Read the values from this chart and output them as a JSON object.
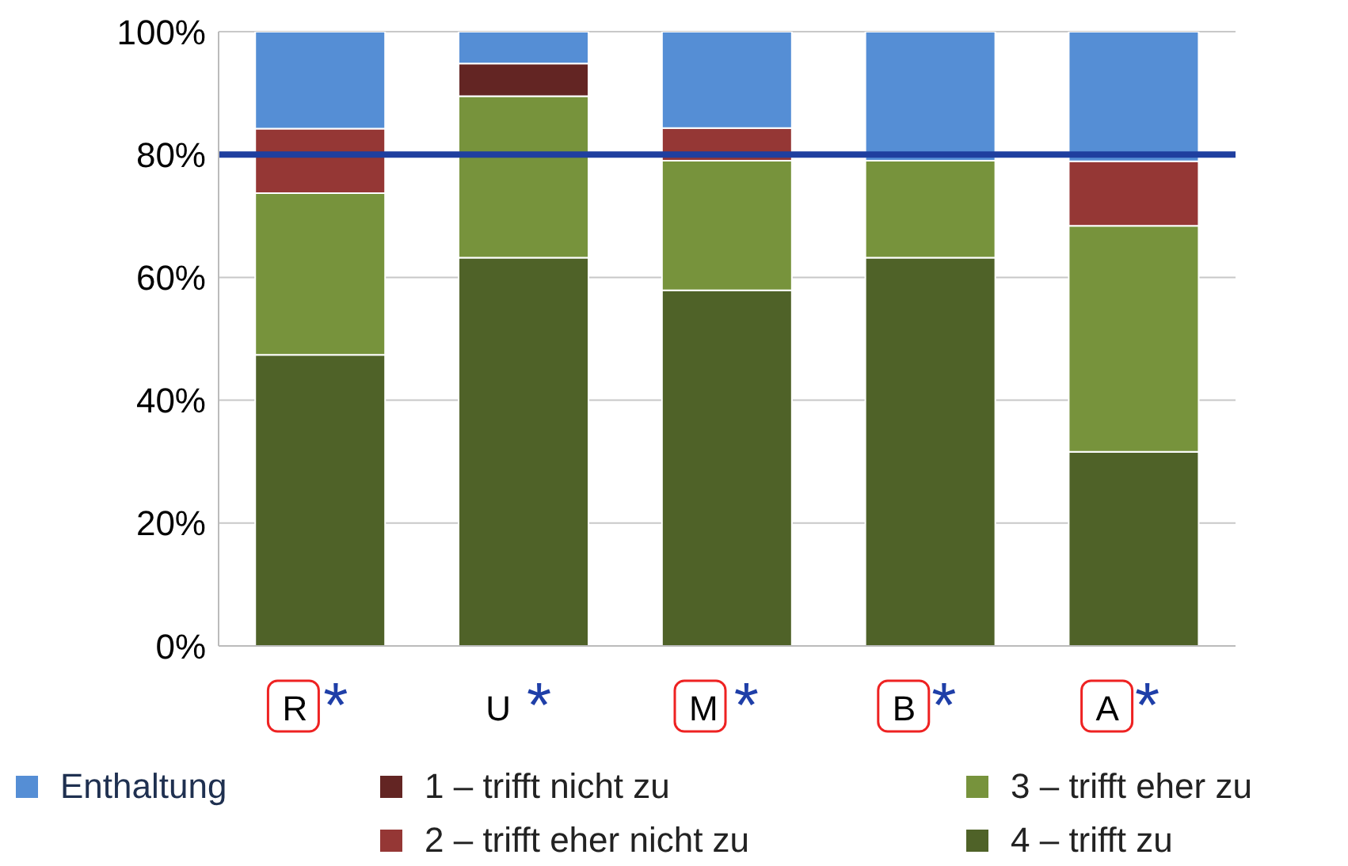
{
  "chart_data": {
    "type": "bar",
    "stacked": true,
    "categories": [
      "R*",
      "U*",
      "M*",
      "B*",
      "A*"
    ],
    "series": [
      {
        "name": "4 – trifft zu",
        "color": "#4f6228",
        "values": [
          47.4,
          63.2,
          57.9,
          63.2,
          31.6
        ]
      },
      {
        "name": "3 – trifft eher zu",
        "color": "#77933c",
        "values": [
          26.3,
          26.3,
          21.1,
          15.8,
          36.8
        ]
      },
      {
        "name": "2 – trifft eher nicht zu",
        "color": "#953735",
        "values": [
          10.5,
          0,
          5.3,
          0,
          10.5
        ]
      },
      {
        "name": "1 – trifft nicht zu",
        "color": "#632523",
        "values": [
          0,
          5.3,
          0,
          0,
          0
        ]
      },
      {
        "name": "Enthaltung",
        "color": "#558ed5",
        "values": [
          15.8,
          5.3,
          15.8,
          21.1,
          21.1
        ]
      }
    ],
    "ylim": [
      0,
      100
    ],
    "yticks": [
      {
        "value": 0,
        "label": "0%"
      },
      {
        "value": 20,
        "label": "20%"
      },
      {
        "value": 40,
        "label": "40%"
      },
      {
        "value": 60,
        "label": "60%"
      },
      {
        "value": 80,
        "label": "80%"
      },
      {
        "value": 100,
        "label": "100%"
      }
    ],
    "grid": "y",
    "legend": "bottom",
    "ref_lines": [
      {
        "axis": "y",
        "value": 80,
        "color": "#1f3f9f"
      }
    ]
  }
}
